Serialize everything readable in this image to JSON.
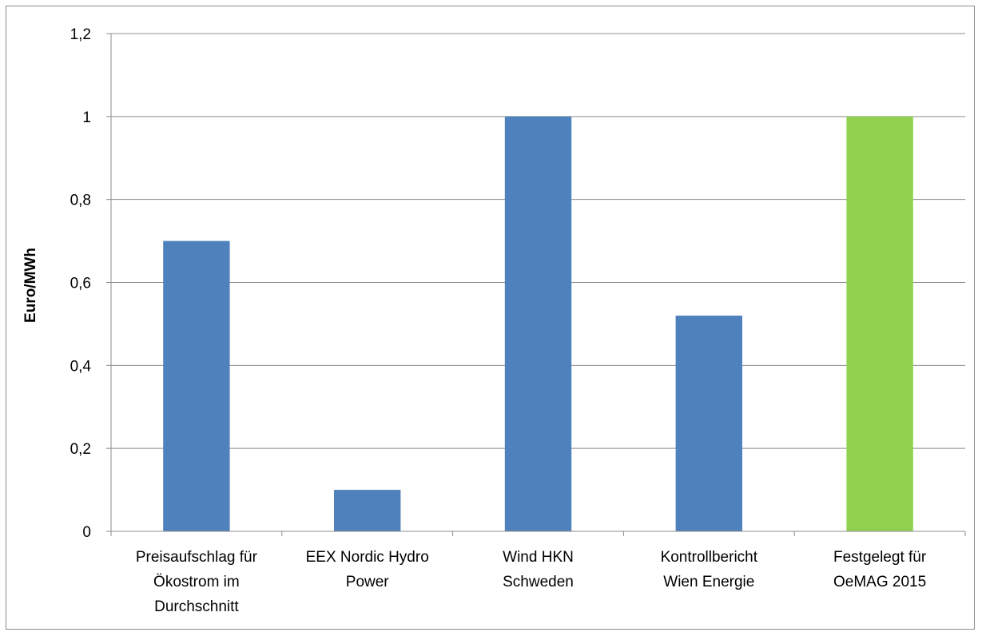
{
  "chart_data": {
    "type": "bar",
    "title": "",
    "xlabel": "",
    "ylabel": "Euro/MWh",
    "ylim": [
      0,
      1.2
    ],
    "yticks": [
      "0",
      "0,2",
      "0,4",
      "0,6",
      "0,8",
      "1",
      "1,2"
    ],
    "grid": true,
    "legend": "none",
    "categories": [
      [
        "Preisaufschlag für",
        "Ökostrom im",
        "Durchschnitt"
      ],
      [
        "EEX Nordic Hydro",
        "Power"
      ],
      [
        "Wind HKN",
        "Schweden"
      ],
      [
        "Kontrollbericht",
        "Wien Energie"
      ],
      [
        "Festgelegt für",
        "OeMAG 2015"
      ]
    ],
    "values": [
      0.7,
      0.1,
      1.0,
      0.52,
      1.0
    ],
    "colors": [
      "#4f81bd",
      "#4f81bd",
      "#4f81bd",
      "#4f81bd",
      "#92d050"
    ]
  }
}
